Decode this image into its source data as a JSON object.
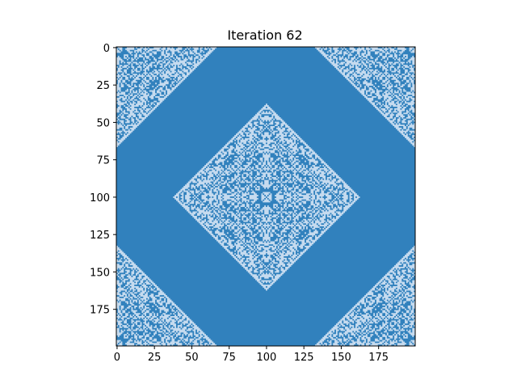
{
  "chart_data": {
    "type": "heatmap",
    "title": "Iteration 62",
    "xlabel": "",
    "ylabel": "",
    "grid_size": [
      200,
      200
    ],
    "xlim": [
      0,
      199
    ],
    "ylim": [
      199,
      0
    ],
    "x_ticks": [
      0,
      25,
      50,
      75,
      100,
      125,
      150,
      175
    ],
    "y_ticks": [
      0,
      25,
      50,
      75,
      100,
      125,
      150,
      175
    ],
    "grid": false,
    "legend": "none",
    "colors": {
      "filled": "#3181bd",
      "empty": "#c6dbef",
      "frame": "#000000"
    },
    "regions": [
      {
        "name": "center-diamond",
        "center": [
          100,
          100
        ],
        "radius": 62
      },
      {
        "name": "corner-top-left",
        "center": [
          0,
          0
        ],
        "radius": 66
      },
      {
        "name": "corner-top-right",
        "center": [
          199,
          0
        ],
        "radius": 66
      },
      {
        "name": "corner-bottom-left",
        "center": [
          0,
          199
        ],
        "radius": 66
      },
      {
        "name": "corner-bottom-right",
        "center": [
          199,
          199
        ],
        "radius": 66
      }
    ]
  }
}
